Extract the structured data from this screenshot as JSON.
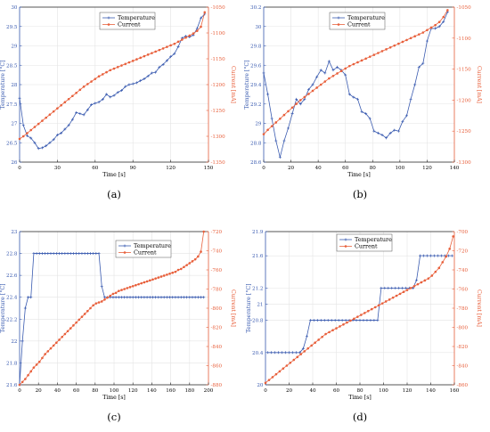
{
  "colors": {
    "temperature": "#3a5bb0",
    "current": "#e8603c"
  },
  "chart_data": [
    {
      "id": "a",
      "caption": "(a)",
      "type": "line",
      "xlabel": "Time [s]",
      "ylabel_left": "Temperature [°C]",
      "ylabel_right": "Current [mA]",
      "xlim": [
        0,
        150
      ],
      "ylim_left": [
        26,
        30
      ],
      "ylim_right": [
        -1350,
        -1050
      ],
      "xticks": [
        0,
        30,
        60,
        90,
        120,
        150
      ],
      "yticks_left": [
        26,
        26.5,
        27,
        27.5,
        28,
        28.5,
        29,
        29.5,
        30
      ],
      "yticks_right": [
        -1350,
        -1300,
        -1250,
        -1200,
        -1150,
        -1100,
        -1050
      ],
      "grid": true,
      "legend_position": "top-center",
      "series": [
        {
          "name": "Temperature",
          "axis": "left",
          "marker": "star",
          "x": [
            0,
            3,
            6,
            9,
            12,
            15,
            18,
            21,
            24,
            27,
            30,
            33,
            36,
            39,
            42,
            45,
            48,
            51,
            54,
            57,
            60,
            63,
            66,
            69,
            72,
            75,
            78,
            81,
            84,
            87,
            90,
            93,
            96,
            99,
            102,
            105,
            108,
            111,
            114,
            117,
            120,
            123,
            126,
            129,
            132,
            135,
            138,
            141,
            144,
            147
          ],
          "y": [
            27.65,
            26.95,
            26.68,
            26.62,
            26.5,
            26.35,
            26.37,
            26.42,
            26.5,
            26.58,
            26.7,
            26.75,
            26.85,
            26.95,
            27.1,
            27.28,
            27.25,
            27.22,
            27.35,
            27.48,
            27.52,
            27.55,
            27.62,
            27.75,
            27.68,
            27.72,
            27.8,
            27.85,
            27.95,
            28.0,
            28.02,
            28.05,
            28.1,
            28.15,
            28.22,
            28.3,
            28.32,
            28.45,
            28.52,
            28.62,
            28.72,
            28.8,
            28.98,
            29.2,
            29.25,
            29.23,
            29.28,
            29.45,
            29.72,
            29.82
          ]
        },
        {
          "name": "Current",
          "axis": "right",
          "marker": "circle",
          "x": [
            0,
            3,
            6,
            9,
            12,
            15,
            18,
            21,
            24,
            27,
            30,
            33,
            36,
            39,
            42,
            45,
            48,
            51,
            54,
            57,
            60,
            63,
            66,
            69,
            72,
            75,
            78,
            81,
            84,
            87,
            90,
            93,
            96,
            99,
            102,
            105,
            108,
            111,
            114,
            117,
            120,
            123,
            126,
            129,
            132,
            135,
            138,
            141,
            144,
            147
          ],
          "y": [
            -1305,
            -1300,
            -1294,
            -1288,
            -1282,
            -1276,
            -1270,
            -1264,
            -1258,
            -1252,
            -1246,
            -1240,
            -1234,
            -1228,
            -1222,
            -1216,
            -1210,
            -1204,
            -1199,
            -1194,
            -1189,
            -1184,
            -1180,
            -1176,
            -1172,
            -1169,
            -1166,
            -1163,
            -1160,
            -1157,
            -1154,
            -1151,
            -1148,
            -1145,
            -1142,
            -1139,
            -1136,
            -1133,
            -1130,
            -1127,
            -1124,
            -1121,
            -1117,
            -1113,
            -1109,
            -1105,
            -1101,
            -1096,
            -1088,
            -1060
          ]
        }
      ]
    },
    {
      "id": "b",
      "caption": "(b)",
      "type": "line",
      "xlabel": "Time [s]",
      "ylabel_left": "Temperature [°C]",
      "ylabel_right": "Current [mA]",
      "xlim": [
        0,
        140
      ],
      "ylim_left": [
        28.6,
        30.2
      ],
      "ylim_right": [
        -1300,
        -1050
      ],
      "xticks": [
        0,
        20,
        40,
        60,
        80,
        100,
        120,
        140
      ],
      "yticks_left": [
        28.6,
        28.8,
        29,
        29.2,
        29.4,
        29.6,
        29.8,
        30,
        30.2
      ],
      "yticks_right": [
        -1300,
        -1250,
        -1200,
        -1150,
        -1100,
        -1050
      ],
      "grid": true,
      "legend_position": "top-center",
      "series": [
        {
          "name": "Temperature",
          "axis": "left",
          "marker": "star",
          "x": [
            0,
            3,
            6,
            9,
            12,
            15,
            18,
            21,
            24,
            27,
            30,
            33,
            36,
            39,
            42,
            45,
            48,
            51,
            54,
            57,
            60,
            63,
            66,
            69,
            72,
            75,
            78,
            81,
            84,
            87,
            90,
            93,
            96,
            99,
            102,
            105,
            108,
            111,
            114,
            117,
            120,
            123,
            126,
            129,
            132,
            135
          ],
          "y": [
            29.52,
            29.3,
            29.05,
            28.82,
            28.65,
            28.82,
            28.95,
            29.1,
            29.25,
            29.2,
            29.25,
            29.35,
            29.4,
            29.48,
            29.55,
            29.52,
            29.64,
            29.55,
            29.58,
            29.55,
            29.5,
            29.3,
            29.27,
            29.25,
            29.12,
            29.1,
            29.05,
            28.92,
            28.9,
            28.88,
            28.85,
            28.9,
            28.93,
            28.92,
            29.02,
            29.08,
            29.25,
            29.4,
            29.58,
            29.62,
            29.85,
            29.98,
            29.98,
            30.0,
            30.05,
            30.15
          ]
        },
        {
          "name": "Current",
          "axis": "right",
          "marker": "circle",
          "x": [
            0,
            3,
            6,
            9,
            12,
            15,
            18,
            21,
            24,
            27,
            30,
            33,
            36,
            39,
            42,
            45,
            48,
            51,
            54,
            57,
            60,
            63,
            66,
            69,
            72,
            75,
            78,
            81,
            84,
            87,
            90,
            93,
            96,
            99,
            102,
            105,
            108,
            111,
            114,
            117,
            120,
            123,
            126,
            129,
            132,
            135
          ],
          "y": [
            -1255,
            -1248,
            -1242,
            -1236,
            -1230,
            -1224,
            -1218,
            -1212,
            -1206,
            -1200,
            -1195,
            -1190,
            -1185,
            -1180,
            -1175,
            -1170,
            -1165,
            -1161,
            -1157,
            -1153,
            -1149,
            -1145,
            -1142,
            -1139,
            -1136,
            -1133,
            -1130,
            -1127,
            -1124,
            -1121,
            -1118,
            -1115,
            -1112,
            -1109,
            -1106,
            -1103,
            -1100,
            -1097,
            -1094,
            -1091,
            -1087,
            -1083,
            -1079,
            -1074,
            -1066,
            -1055
          ]
        }
      ]
    },
    {
      "id": "c",
      "caption": "(c)",
      "type": "line",
      "xlabel": "Time [s]",
      "ylabel_left": "Temperature [°C]",
      "ylabel_right": "Current [mA]",
      "xlim": [
        0,
        200
      ],
      "ylim_left": [
        21.6,
        23
      ],
      "ylim_right": [
        -880,
        -720
      ],
      "xticks": [
        0,
        20,
        40,
        60,
        80,
        100,
        120,
        140,
        160,
        180,
        200
      ],
      "yticks_left": [
        21.6,
        21.8,
        22,
        22.2,
        22.4,
        22.6,
        22.8,
        23
      ],
      "yticks_right": [
        -880,
        -860,
        -840,
        -820,
        -800,
        -780,
        -760,
        -740,
        -720
      ],
      "grid": true,
      "legend_position": "top-right",
      "series": [
        {
          "name": "Temperature",
          "axis": "left",
          "marker": "star",
          "x": [
            0,
            3,
            6,
            9,
            12,
            15,
            18,
            21,
            24,
            27,
            30,
            33,
            36,
            39,
            42,
            45,
            48,
            51,
            54,
            57,
            60,
            63,
            66,
            69,
            72,
            75,
            78,
            81,
            84,
            87,
            90,
            93,
            96,
            99,
            102,
            105,
            108,
            111,
            114,
            117,
            120,
            123,
            126,
            129,
            132,
            135,
            138,
            141,
            144,
            147,
            150,
            153,
            156,
            159,
            162,
            165,
            168,
            171,
            174,
            177,
            180,
            183,
            186,
            189,
            192,
            195
          ],
          "y": [
            21.6,
            22.0,
            22.3,
            22.4,
            22.4,
            22.8,
            22.8,
            22.8,
            22.8,
            22.8,
            22.8,
            22.8,
            22.8,
            22.8,
            22.8,
            22.8,
            22.8,
            22.8,
            22.8,
            22.8,
            22.8,
            22.8,
            22.8,
            22.8,
            22.8,
            22.8,
            22.8,
            22.8,
            22.8,
            22.5,
            22.4,
            22.4,
            22.4,
            22.4,
            22.4,
            22.4,
            22.4,
            22.4,
            22.4,
            22.4,
            22.4,
            22.4,
            22.4,
            22.4,
            22.4,
            22.4,
            22.4,
            22.4,
            22.4,
            22.4,
            22.4,
            22.4,
            22.4,
            22.4,
            22.4,
            22.4,
            22.4,
            22.4,
            22.4,
            22.4,
            22.4,
            22.4,
            22.4,
            22.4,
            22.4,
            22.4
          ]
        },
        {
          "name": "Current",
          "axis": "right",
          "marker": "circle",
          "x": [
            0,
            3,
            6,
            9,
            12,
            15,
            18,
            21,
            24,
            27,
            30,
            33,
            36,
            39,
            42,
            45,
            48,
            51,
            54,
            57,
            60,
            63,
            66,
            69,
            72,
            75,
            78,
            81,
            84,
            87,
            90,
            93,
            96,
            99,
            102,
            105,
            108,
            111,
            114,
            117,
            120,
            123,
            126,
            129,
            132,
            135,
            138,
            141,
            144,
            147,
            150,
            153,
            156,
            159,
            162,
            165,
            168,
            171,
            174,
            177,
            180,
            183,
            186,
            189,
            192,
            195
          ],
          "y": [
            -880,
            -877,
            -874,
            -870,
            -866,
            -862,
            -859,
            -856,
            -852,
            -848,
            -845,
            -842,
            -839,
            -836,
            -833,
            -830,
            -827,
            -824,
            -821,
            -818,
            -815,
            -812,
            -809,
            -806,
            -803,
            -800,
            -797,
            -795,
            -794,
            -793,
            -791,
            -789,
            -787,
            -785,
            -784,
            -782,
            -781,
            -780,
            -779,
            -778,
            -777,
            -776,
            -775,
            -774,
            -773,
            -772,
            -771,
            -770,
            -769,
            -768,
            -767,
            -766,
            -765,
            -764,
            -763,
            -762,
            -760,
            -759,
            -757,
            -755,
            -753,
            -751,
            -749,
            -746,
            -741,
            -720
          ]
        }
      ]
    },
    {
      "id": "d",
      "caption": "(d)",
      "type": "line",
      "xlabel": "Time [s]",
      "ylabel_left": "Temperature [°C]",
      "ylabel_right": "Current [mA]",
      "xlim": [
        0,
        160
      ],
      "ylim_left": [
        20,
        21.9
      ],
      "ylim_right": [
        -860,
        -700
      ],
      "xticks": [
        0,
        20,
        40,
        60,
        80,
        100,
        120,
        140,
        160
      ],
      "yticks_left": [
        20,
        20.4,
        20.8,
        21,
        21.2,
        21.6,
        21.9
      ],
      "yticks_right": [
        -860,
        -840,
        -820,
        -800,
        -780,
        -760,
        -740,
        -720,
        -700
      ],
      "grid": true,
      "legend_position": "top-center",
      "series": [
        {
          "name": "Temperature",
          "axis": "left",
          "marker": "star",
          "x": [
            2,
            5,
            8,
            11,
            14,
            17,
            20,
            23,
            26,
            29,
            32,
            35,
            38,
            41,
            44,
            47,
            50,
            53,
            56,
            59,
            62,
            65,
            68,
            71,
            74,
            77,
            80,
            83,
            86,
            89,
            92,
            95,
            98,
            101,
            104,
            107,
            110,
            113,
            116,
            119,
            122,
            125,
            128,
            131,
            134,
            137,
            140,
            143,
            146,
            149,
            152,
            155,
            158
          ],
          "y": [
            20.4,
            20.4,
            20.4,
            20.4,
            20.4,
            20.4,
            20.4,
            20.4,
            20.4,
            20.4,
            20.45,
            20.6,
            20.8,
            20.8,
            20.8,
            20.8,
            20.8,
            20.8,
            20.8,
            20.8,
            20.8,
            20.8,
            20.8,
            20.8,
            20.8,
            20.8,
            20.8,
            20.8,
            20.8,
            20.8,
            20.8,
            20.8,
            21.2,
            21.2,
            21.2,
            21.2,
            21.2,
            21.2,
            21.2,
            21.2,
            21.2,
            21.2,
            21.3,
            21.6,
            21.6,
            21.6,
            21.6,
            21.6,
            21.6,
            21.6,
            21.6,
            21.6,
            21.6
          ]
        },
        {
          "name": "Current",
          "axis": "right",
          "marker": "circle",
          "x": [
            0,
            3,
            6,
            9,
            12,
            15,
            18,
            21,
            24,
            27,
            30,
            33,
            36,
            39,
            42,
            45,
            48,
            51,
            54,
            57,
            60,
            63,
            66,
            69,
            72,
            75,
            78,
            81,
            84,
            87,
            90,
            93,
            96,
            99,
            102,
            105,
            108,
            111,
            114,
            117,
            120,
            123,
            126,
            129,
            132,
            135,
            138,
            141,
            144,
            147,
            150,
            153,
            156,
            159
          ],
          "y": [
            -858,
            -855,
            -852,
            -849,
            -846,
            -843,
            -840,
            -837,
            -834,
            -831,
            -828,
            -825,
            -822,
            -819,
            -816,
            -813,
            -810,
            -807,
            -805,
            -803,
            -801,
            -799,
            -797,
            -795,
            -793,
            -791,
            -789,
            -787,
            -785,
            -783,
            -781,
            -779,
            -777,
            -775,
            -773,
            -771,
            -769,
            -767,
            -765,
            -763,
            -761,
            -759,
            -757,
            -755,
            -753,
            -751,
            -749,
            -746,
            -742,
            -738,
            -732,
            -726,
            -718,
            -705
          ]
        }
      ]
    }
  ]
}
